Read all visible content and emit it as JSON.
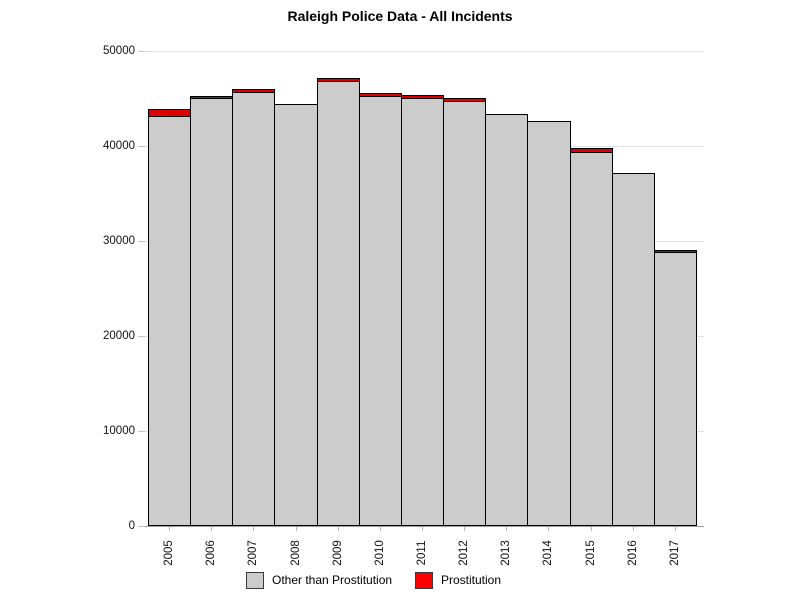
{
  "title": "Raleigh Police Data - All Incidents",
  "chart_data": {
    "type": "bar",
    "stacked": true,
    "title": "Raleigh Police Data - All Incidents",
    "xlabel": "",
    "ylabel": "",
    "categories": [
      "2005",
      "2006",
      "2007",
      "2008",
      "2009",
      "2010",
      "2011",
      "2012",
      "2013",
      "2014",
      "2015",
      "2016",
      "2017"
    ],
    "series": [
      {
        "name": "Other than Prostitution",
        "color": "#cccccc",
        "values": [
          43100,
          45000,
          45600,
          44400,
          46800,
          45200,
          45000,
          44700,
          43400,
          42600,
          39300,
          37200,
          28700
        ]
      },
      {
        "name": "Prostitution",
        "color": "#dd0000",
        "values": [
          800,
          300,
          400,
          0,
          400,
          400,
          400,
          400,
          0,
          0,
          500,
          0,
          300
        ]
      }
    ],
    "totals": [
      43900,
      45300,
      46000,
      44400,
      47200,
      45600,
      45400,
      45100,
      43400,
      42600,
      39800,
      37200,
      29000
    ],
    "ylim": [
      0,
      50000
    ],
    "yticks": [
      0,
      10000,
      20000,
      30000,
      40000,
      50000
    ],
    "ytick_labels": [
      "0",
      "10000",
      "20000",
      "30000",
      "40000",
      "50000"
    ],
    "grid": true,
    "x_labels_rotated_degrees": -90,
    "legend_position": "bottom"
  },
  "legend": {
    "items": [
      {
        "label": "Other than Prostitution",
        "color": "#cccccc"
      },
      {
        "label": "Prostitution",
        "color": "#ff0000"
      }
    ]
  },
  "colors": {
    "background": "#ffffff",
    "bar_other": "#cccccc",
    "bar_prostitution": "#dd0000",
    "legend_prostitution_swatch": "#ff0000",
    "bar_border": "#000000",
    "gridline": "#e2e2e2",
    "axis_line": "#a0a0a0",
    "text": "#000000"
  }
}
